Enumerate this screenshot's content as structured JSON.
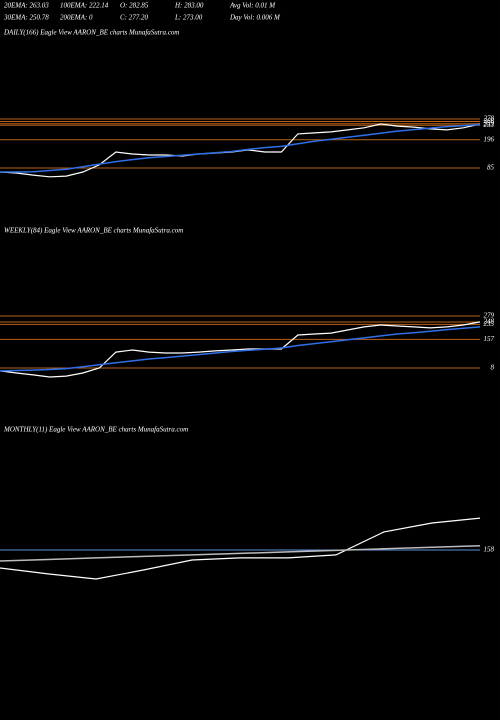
{
  "header": {
    "rows": [
      [
        "20EMA: 263.03",
        "100EMA: 222.14",
        "O: 282.85",
        "H: 283.00",
        "Avg Vol: 0.01 M"
      ],
      [
        "30EMA: 250.78",
        "200EMA: 0",
        "C: 277.20",
        "L: 273.00",
        "Day Vol: 0.006 M"
      ]
    ]
  },
  "chart_data": [
    {
      "type": "line",
      "title": "DAILY(166) Eagle  View  AARON_BE charts MunafaSutra.com",
      "ylim": [
        -120,
        589
      ],
      "yticks": [
        278,
        268,
        259,
        253,
        196,
        85
      ],
      "tick_color": "#b8621b",
      "series": [
        {
          "color": "#ffffff",
          "values": [
            69,
            65,
            57,
            50,
            53,
            69,
            97,
            148,
            140,
            136,
            136,
            132,
            140,
            144,
            148,
            156,
            148,
            148,
            219,
            223,
            227,
            235,
            243,
            258,
            250,
            246,
            239,
            235,
            243,
            258
          ]
        },
        {
          "color": "#2f6fe8",
          "values": [
            69,
            69,
            70,
            75,
            80,
            90,
            100,
            110,
            118,
            125,
            130,
            135,
            140,
            145,
            150,
            158,
            165,
            170,
            180,
            190,
            198,
            206,
            214,
            222,
            230,
            236,
            242,
            248,
            252,
            256
          ]
        }
      ]
    },
    {
      "type": "line",
      "title": "WEEKLY(84) Eagle  View  AARON_BE charts MunafaSutra.com",
      "ylim": [
        -263,
        675
      ],
      "yticks": [
        279,
        248,
        235,
        157,
        8
      ],
      "tick_color": "#b8621b",
      "series": [
        {
          "color": "#ffffff",
          "values": [
            -7,
            -18,
            -28,
            -39,
            -34,
            -18,
            8,
            91,
            102,
            91,
            86,
            86,
            91,
            97,
            102,
            107,
            107,
            107,
            180,
            185,
            190,
            206,
            222,
            232,
            227,
            222,
            217,
            222,
            232,
            248
          ]
        },
        {
          "color": "#2f6fe8",
          "values": [
            -7,
            -5,
            -3,
            0,
            5,
            15,
            25,
            35,
            45,
            55,
            62,
            70,
            78,
            86,
            94,
            100,
            106,
            112,
            125,
            135,
            145,
            155,
            165,
            175,
            185,
            192,
            200,
            208,
            215,
            222
          ]
        }
      ]
    },
    {
      "type": "line",
      "title": "MONTHLY(11) Eagle  View  AARON_BE charts MunafaSutra.com",
      "ylim": [
        -316,
        737
      ],
      "yticks": [
        158
      ],
      "tick_color": "#5b8fe0",
      "series": [
        {
          "color": "#ffffff",
          "values": [
            63,
            32,
            5,
            53,
            105,
            116,
            116,
            132,
            253,
            300,
            326
          ]
        },
        {
          "color": "#bbbbbb",
          "values": [
            100,
            108,
            116,
            124,
            132,
            140,
            148,
            156,
            164,
            172,
            180
          ]
        }
      ]
    }
  ]
}
